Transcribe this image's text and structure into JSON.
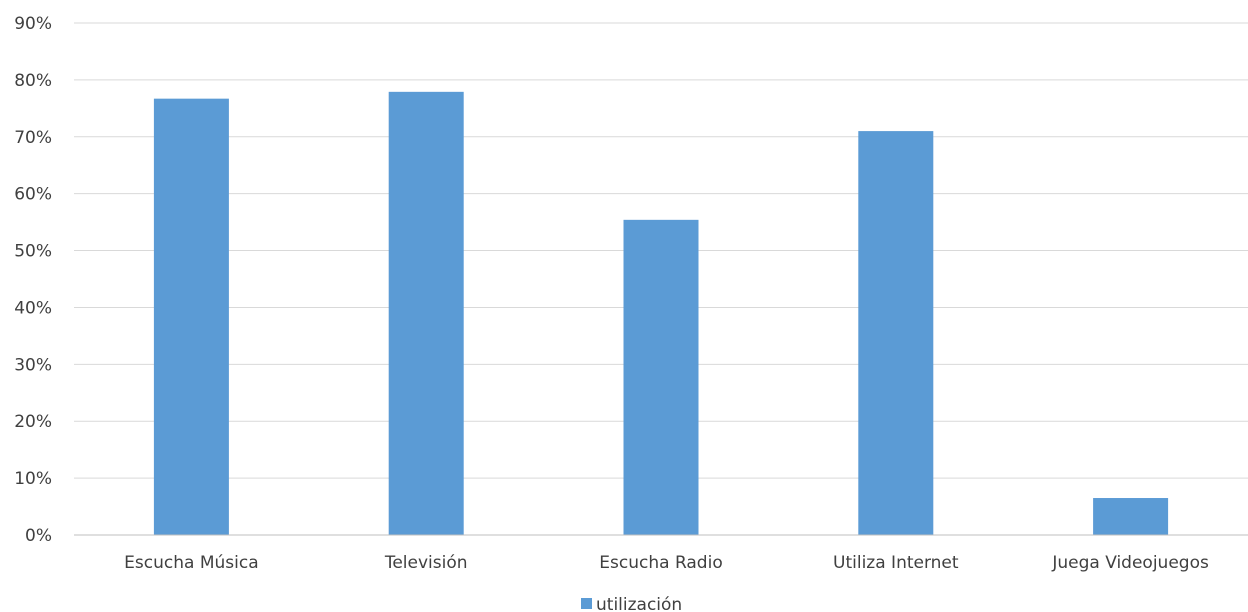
{
  "chart_data": {
    "type": "bar",
    "categories": [
      "Escucha Música",
      "Televisión",
      "Escucha Radio",
      "Utiliza Internet",
      "Juega Videojuegos"
    ],
    "series": [
      {
        "name": "utilización",
        "values": [
          0.767,
          0.779,
          0.554,
          0.71,
          0.065
        ]
      }
    ],
    "ylim": [
      0,
      0.9
    ],
    "yticks": [
      0,
      0.1,
      0.2,
      0.3,
      0.4,
      0.5,
      0.6,
      0.7,
      0.8,
      0.9
    ],
    "ytick_labels": [
      "0%",
      "10%",
      "20%",
      "30%",
      "40%",
      "50%",
      "60%",
      "70%",
      "80%",
      "90%"
    ],
    "grid": true,
    "legend_position": "bottom",
    "colors": {
      "bar": "#5b9bd5",
      "grid": "#d9d9d9",
      "axis": "#bfbfbf",
      "text": "#404040"
    }
  }
}
